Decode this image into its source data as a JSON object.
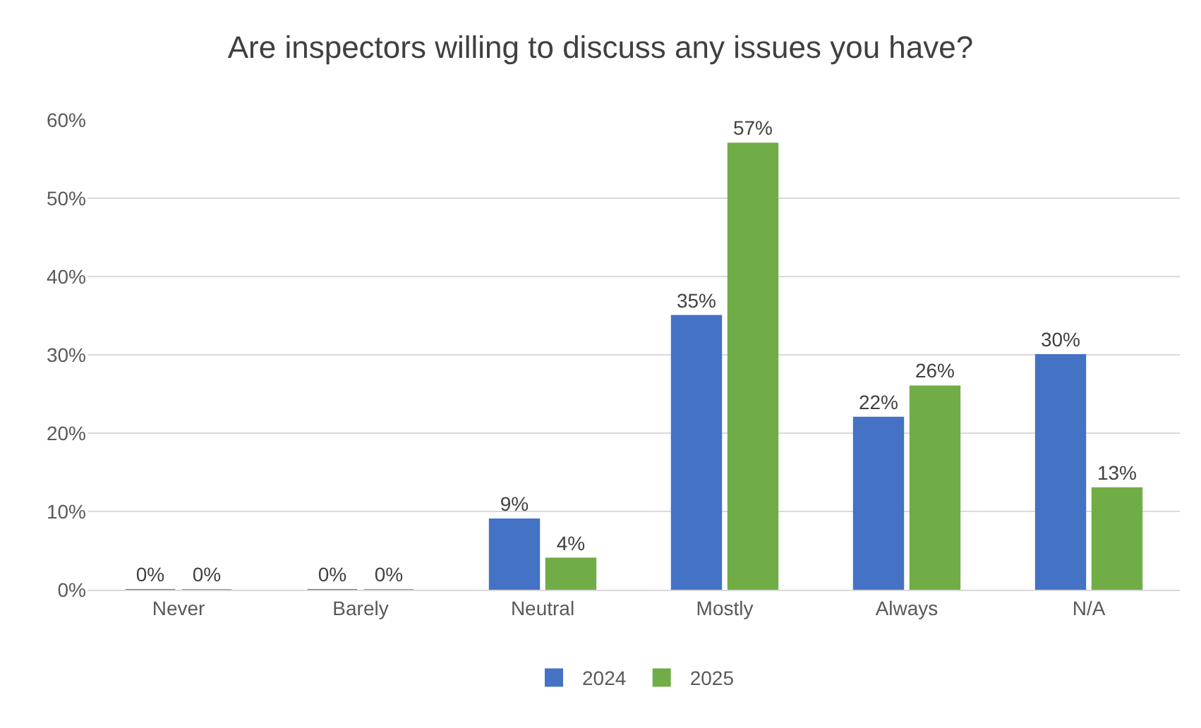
{
  "chart_data": {
    "type": "bar",
    "title": "Are inspectors willing to discuss any issues you have?",
    "categories": [
      "Never",
      "Barely",
      "Neutral",
      "Mostly",
      "Always",
      "N/A"
    ],
    "series": [
      {
        "name": "2024",
        "color": "#4472c4",
        "values": [
          0,
          0,
          9,
          35,
          22,
          30
        ],
        "value_labels": [
          "0%",
          "0%",
          "9%",
          "35%",
          "22%",
          "30%"
        ]
      },
      {
        "name": "2025",
        "color": "#70ad47",
        "values": [
          0,
          0,
          4,
          57,
          26,
          13
        ],
        "value_labels": [
          "0%",
          "0%",
          "4%",
          "57%",
          "26%",
          "13%"
        ]
      }
    ],
    "ylim": [
      0,
      60
    ],
    "yticks": [
      {
        "value": 0,
        "label": "0%"
      },
      {
        "value": 10,
        "label": "10%"
      },
      {
        "value": 20,
        "label": "20%"
      },
      {
        "value": 30,
        "label": "30%"
      },
      {
        "value": 40,
        "label": "40%"
      },
      {
        "value": 50,
        "label": "50%"
      },
      {
        "value": 60,
        "label": "60%"
      }
    ],
    "grid": "y",
    "legend": "bottom"
  }
}
